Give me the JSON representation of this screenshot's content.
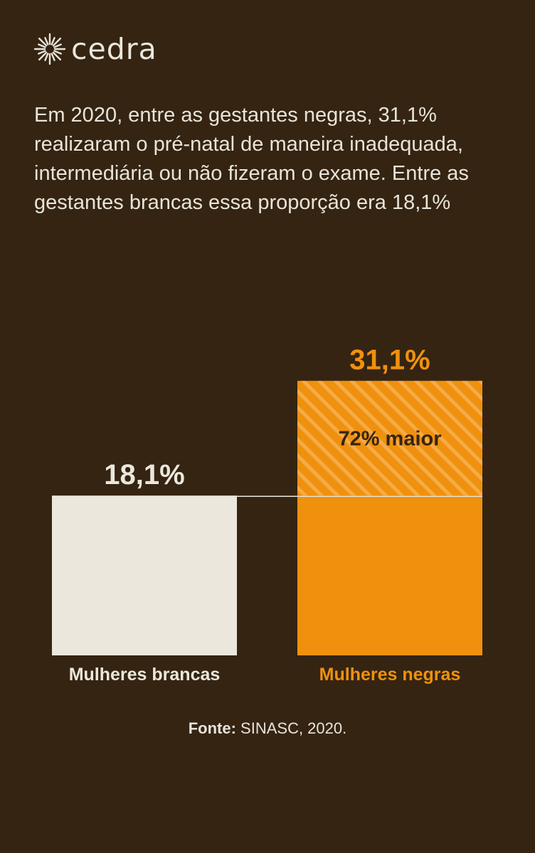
{
  "brand": {
    "name": "cedra",
    "logo_icon": "sunburst-icon"
  },
  "intro_text": "Em 2020, entre as gestantes negras, 31,1% realizaram o pré-natal de maneira inadequada, intermediária ou não fizeram o exame. Entre as gestantes brancas essa proporção era 18,1%",
  "colors": {
    "background": "#352412",
    "white_bar": "#ebe7dd",
    "accent": "#f0910e",
    "text": "#e8e4da",
    "dark_text": "#352412"
  },
  "chart_data": {
    "type": "bar",
    "categories": [
      "Mulheres brancas",
      "Mulheres negras"
    ],
    "values": [
      18.1,
      31.1
    ],
    "value_labels": [
      "18,1%",
      "31,1%"
    ],
    "unit": "%",
    "annotation": {
      "text": "72% maior",
      "region": "difference between Mulheres negras and Mulheres brancas",
      "style": "hatched"
    },
    "reference_line": {
      "value": 18.1,
      "style": "solid thin line connecting bar tops"
    },
    "bar_colors": [
      "#ebe7dd",
      "#f0910e"
    ],
    "label_colors": [
      "#ebe7dd",
      "#f0910e"
    ],
    "grid": false,
    "legend": "none",
    "axes_visible": false
  },
  "source": {
    "label": "Fonte:",
    "text": " SINASC, 2020."
  }
}
